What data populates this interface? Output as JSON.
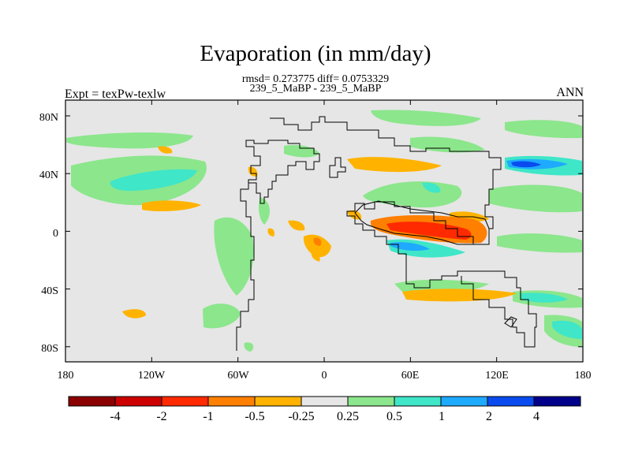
{
  "title": "Evaporation (in mm/day)",
  "stats_line1": "rmsd= 0.273775 diff= 0.0753329",
  "stats_line2": "239_5_MaBP - 239_5_MaBP",
  "left_label": "Expt = texPw-texlw",
  "right_label": "ANN",
  "x_ticks": [
    "180",
    "120W",
    "60W",
    "0",
    "60E",
    "120E",
    "180"
  ],
  "y_ticks": [
    "80N",
    "40N",
    "0",
    "40S",
    "80S"
  ],
  "colorbar": {
    "colors": [
      "#8b0000",
      "#cd0000",
      "#ff2a00",
      "#ff7f00",
      "#ffb300",
      "#e6e6e6",
      "#8ce68c",
      "#3fe6c8",
      "#1eaaff",
      "#0a4bf0",
      "#00008b"
    ],
    "labels": [
      "-4",
      "-2",
      "-1",
      "-0.5",
      "-0.25",
      "0.25",
      "0.5",
      "1",
      "2",
      "4"
    ]
  }
}
